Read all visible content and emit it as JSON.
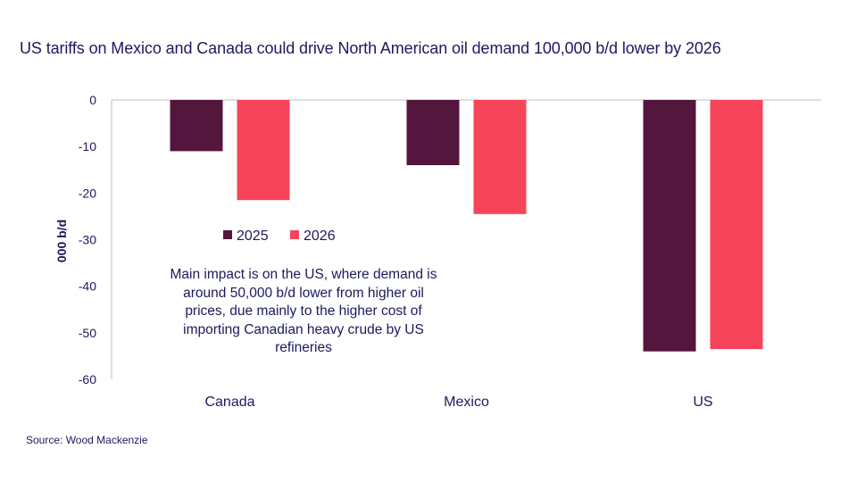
{
  "title": "US tariffs on Mexico and Canada could drive North American oil demand 100,000 b/d lower by 2026",
  "source": "Source: Wood Mackenzie",
  "annotation": "Main impact is on the US, where demand is around 50,000 b/d lower from higher oil prices, due mainly to the higher cost of importing Canadian heavy crude by US refineries",
  "colors": {
    "2025": "#54163d",
    "2026": "#f7445a",
    "text": "#1b1a5e",
    "axis": "#bfbfbf"
  },
  "chart_data": {
    "type": "bar",
    "title": "US tariffs on Mexico and Canada could drive North American oil demand 100,000 b/d lower by 2026",
    "xlabel": "",
    "ylabel": "000 b/d",
    "categories": [
      "Canada",
      "Mexico",
      "US"
    ],
    "series": [
      {
        "name": "2025",
        "values": [
          -11,
          -14,
          -54
        ]
      },
      {
        "name": "2026",
        "values": [
          -21.5,
          -24.5,
          -53.5
        ]
      }
    ],
    "ylim": [
      -60,
      0
    ],
    "yticks": [
      0,
      -10,
      -20,
      -30,
      -40,
      -50,
      -60
    ],
    "ytick_labels": [
      "0",
      "-10",
      "-20",
      "-30",
      "-40",
      "-50",
      "-60"
    ],
    "grid": false,
    "legend": "inside-left"
  }
}
